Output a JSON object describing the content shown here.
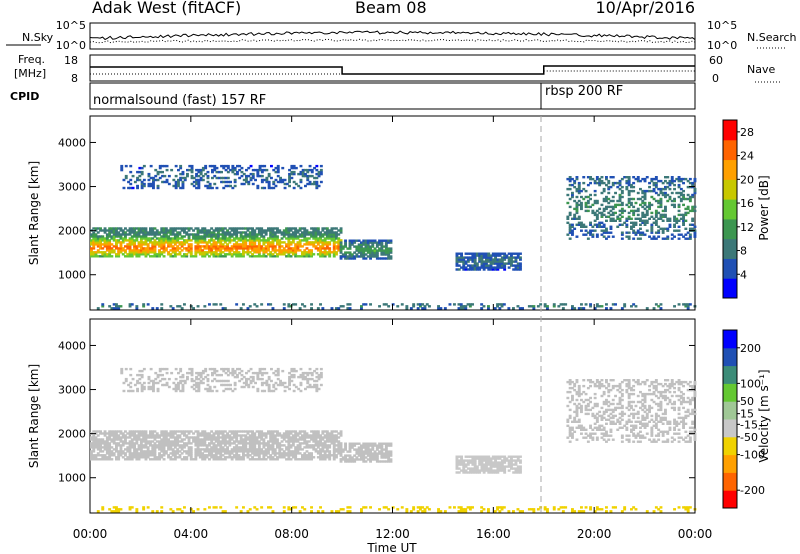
{
  "header": {
    "station": "Adak West (fitACF)",
    "beam": "Beam 08",
    "date": "10/Apr/2016"
  },
  "noise_panel": {
    "left_label": "N.Sky",
    "right_label": "N.Search",
    "left_ticks": [
      "10^5",
      "10^0"
    ],
    "right_ticks": [
      "10^5",
      "10^0"
    ]
  },
  "freq_panel": {
    "left_label_line1": "Freq.",
    "left_label_line2": "[MHz]",
    "right_label": "Nave",
    "left_ticks": [
      "18",
      "8"
    ],
    "right_ticks": [
      "60",
      "0"
    ]
  },
  "cpid_panel": {
    "label": "CPID",
    "segments": [
      {
        "text": "normalsound (fast) 157 RF",
        "start_hour": 0
      },
      {
        "text": "rbsp 200 RF",
        "start_hour": 18
      }
    ]
  },
  "colors": {
    "power_scale": [
      "#0000ff",
      "#2050b4",
      "#3c7878",
      "#3c9650",
      "#64c832",
      "#c8c800",
      "#ffa000",
      "#ff6400",
      "#ff0000"
    ],
    "velocity_scale": [
      "#ff0000",
      "#ff6400",
      "#ffa000",
      "#f0d200",
      "#c8c8c8",
      "#a0c896",
      "#64c832",
      "#3c8c78",
      "#2050b4",
      "#0000ff"
    ],
    "ground_scatter": "#c0c0c0",
    "frame": "#000000",
    "dashed_marker": "#aaaaaa"
  },
  "chart_data": [
    {
      "type": "heatmap",
      "panel": "power",
      "ylabel": "Slant Range [km]",
      "yticks": [
        1000,
        2000,
        3000,
        4000
      ],
      "ylim": [
        200,
        4600
      ],
      "xlim_hours": [
        0,
        24
      ],
      "colorbar_label": "Power [dB]",
      "colorbar_ticks": [
        4,
        8,
        12,
        16,
        20,
        24,
        28
      ],
      "colorbar_range": [
        0,
        30
      ],
      "regions": [
        {
          "t0": 0.0,
          "t1": 9.9,
          "r_low": 1400,
          "r_high": 2050,
          "core_range": 1600,
          "core_power": 25,
          "edge_power": 9
        },
        {
          "t0": 9.9,
          "t1": 11.9,
          "r_low": 1350,
          "r_high": 1800,
          "core_range": 1550,
          "core_power": 12,
          "edge_power": 6
        },
        {
          "t0": 14.5,
          "t1": 17.1,
          "r_low": 1100,
          "r_high": 1500,
          "core_range": 1300,
          "core_power": 8,
          "edge_power": 5
        },
        {
          "t0": 18.9,
          "t1": 24.0,
          "r_low": 1800,
          "r_high": 3200,
          "core_range": 2500,
          "core_power": 10,
          "edge_power": 6
        },
        {
          "t0": 1.2,
          "t1": 9.2,
          "r_low": 2950,
          "r_high": 3450,
          "core_range": 3200,
          "core_power": 7,
          "edge_power": 5
        },
        {
          "t0": 0.0,
          "t1": 24.0,
          "r_low": 220,
          "r_high": 330,
          "core_range": 280,
          "core_power": 10,
          "edge_power": 6
        }
      ]
    },
    {
      "type": "heatmap",
      "panel": "velocity",
      "ylabel": "Slant Range [km]",
      "yticks": [
        1000,
        2000,
        3000,
        4000
      ],
      "ylim": [
        200,
        4600
      ],
      "xlim_hours": [
        0,
        24
      ],
      "xticks": [
        "00:00",
        "04:00",
        "08:00",
        "12:00",
        "16:00",
        "20:00",
        "00:00"
      ],
      "xlabel": "Time UT",
      "colorbar_label": "Velocity [m s⁻¹]",
      "colorbar_ticks": [
        -200,
        -100,
        -50,
        -15,
        15,
        50,
        100,
        200
      ],
      "colorbar_range": [
        -250,
        250
      ],
      "regions": [
        {
          "t0": 0.0,
          "t1": 9.9,
          "r_low": 1400,
          "r_high": 2050,
          "velocity": 0
        },
        {
          "t0": 9.9,
          "t1": 11.9,
          "r_low": 1350,
          "r_high": 1800,
          "velocity": 0
        },
        {
          "t0": 14.5,
          "t1": 17.1,
          "r_low": 1100,
          "r_high": 1500,
          "velocity": -40
        },
        {
          "t0": 18.9,
          "t1": 24.0,
          "r_low": 1800,
          "r_high": 3200,
          "velocity": 0
        },
        {
          "t0": 1.2,
          "t1": 9.2,
          "r_low": 2950,
          "r_high": 3450,
          "velocity": 0
        },
        {
          "t0": 0.0,
          "t1": 24.0,
          "r_low": 220,
          "r_high": 330,
          "velocity": -60
        }
      ]
    }
  ]
}
